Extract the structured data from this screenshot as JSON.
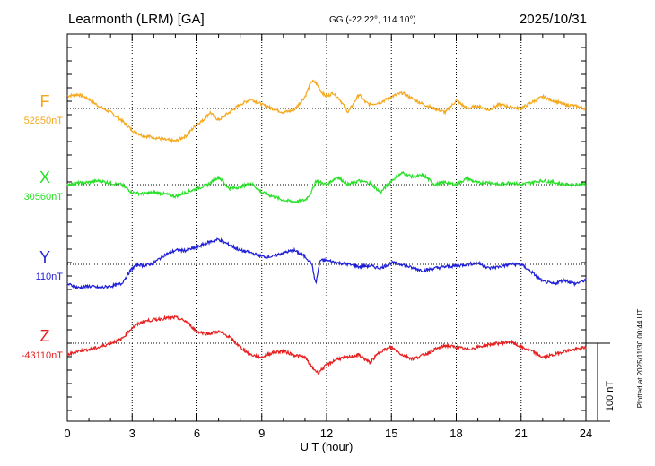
{
  "header": {
    "station": "Learmonth (LRM)  [GA]",
    "coords": "GG (-22.22°, 114.10°)",
    "date": "2025/10/31"
  },
  "chart_data": {
    "type": "line",
    "xlabel": "U T (hour)",
    "xlim": [
      0,
      24
    ],
    "x_ticks": [
      0,
      3,
      6,
      9,
      12,
      15,
      18,
      21,
      24
    ],
    "x_tick_labels": [
      "0",
      "3",
      "6",
      "9",
      "12",
      "15",
      "18",
      "21",
      "24"
    ],
    "grid": true,
    "scale_bar_label": "100 nT",
    "plotted_note": "Plotted at 2025/11/30 00:44 UT",
    "series": [
      {
        "name": "F",
        "baseline_label": "52850nT",
        "color": "#f5a81c",
        "x": [
          0,
          0.5,
          1,
          1.5,
          2,
          2.5,
          3,
          3.5,
          4,
          4.5,
          5,
          5.5,
          6,
          6.3,
          6.6,
          7,
          7.5,
          8,
          8.5,
          9,
          9.5,
          10,
          10.5,
          11,
          11.3,
          11.5,
          11.8,
          12,
          12.3,
          12.6,
          13,
          13.5,
          13.8,
          14,
          14.5,
          15,
          15.5,
          16,
          16.5,
          17,
          17.5,
          18,
          18.5,
          19,
          19.5,
          20,
          20.5,
          21,
          21.5,
          22,
          22.5,
          23,
          23.5,
          24
        ],
        "values": [
          16,
          18,
          12,
          2,
          -5,
          -15,
          -28,
          -35,
          -37,
          -40,
          -42,
          -35,
          -20,
          -15,
          -5,
          -15,
          -5,
          5,
          12,
          5,
          0,
          -5,
          -2,
          15,
          35,
          33,
          20,
          15,
          20,
          12,
          -5,
          18,
          8,
          5,
          8,
          15,
          20,
          12,
          5,
          0,
          -5,
          10,
          0,
          3,
          -2,
          5,
          2,
          0,
          8,
          15,
          10,
          5,
          3,
          0
        ]
      },
      {
        "name": "X",
        "baseline_label": "30560nT",
        "color": "#27e027",
        "x": [
          0,
          0.5,
          1,
          1.5,
          2,
          2.5,
          3,
          3.5,
          4,
          4.5,
          5,
          5.5,
          6,
          6.5,
          7,
          7.5,
          8,
          8.5,
          9,
          9.5,
          10,
          10.5,
          11,
          11.3,
          11.5,
          12,
          12.5,
          13,
          13.5,
          14,
          14.5,
          15,
          15.5,
          16,
          16.5,
          17,
          17.5,
          18,
          18.5,
          19,
          19.5,
          20,
          20.5,
          21,
          21.5,
          22,
          22.5,
          23,
          23.5,
          24
        ],
        "values": [
          0,
          2,
          3,
          5,
          2,
          0,
          -10,
          -12,
          -10,
          -12,
          -15,
          -10,
          -5,
          0,
          10,
          -5,
          -3,
          2,
          -10,
          -15,
          -20,
          -22,
          -20,
          -10,
          5,
          0,
          10,
          0,
          5,
          2,
          -10,
          5,
          15,
          10,
          12,
          0,
          3,
          0,
          8,
          2,
          3,
          0,
          3,
          0,
          3,
          5,
          3,
          0,
          0,
          2
        ]
      },
      {
        "name": "Y",
        "baseline_label": "110nT",
        "color": "#1f1fd8",
        "x": [
          0,
          0.5,
          1,
          1.5,
          2,
          2.5,
          3,
          3.3,
          3.6,
          4,
          4.5,
          5,
          5.5,
          6,
          6.5,
          7,
          7.5,
          8,
          8.5,
          9,
          9.5,
          10,
          10.5,
          11,
          11.3,
          11.5,
          11.7,
          12,
          12.5,
          13,
          13.5,
          14,
          14.5,
          15,
          15.5,
          16,
          16.5,
          17,
          17.5,
          18,
          18.5,
          19,
          19.5,
          20,
          20.5,
          21,
          21.5,
          22,
          22.5,
          23,
          23.5,
          24
        ],
        "values": [
          -25,
          -30,
          -28,
          -30,
          -28,
          -25,
          -5,
          0,
          -2,
          2,
          12,
          18,
          18,
          22,
          28,
          32,
          25,
          18,
          15,
          10,
          10,
          15,
          18,
          10,
          2,
          -25,
          5,
          5,
          2,
          0,
          -3,
          -2,
          -5,
          2,
          0,
          -5,
          -8,
          -5,
          -3,
          -2,
          0,
          2,
          -5,
          -3,
          0,
          0,
          -10,
          -22,
          -25,
          -20,
          -25,
          -20
        ]
      },
      {
        "name": "Z",
        "baseline_label": "-43110nT",
        "color": "#e81e1e",
        "x": [
          0,
          0.5,
          1,
          1.5,
          2,
          2.5,
          3,
          3.5,
          4,
          4.5,
          5,
          5.5,
          6,
          6.5,
          7,
          7.5,
          8,
          8.5,
          9,
          9.5,
          10,
          10.5,
          11,
          11.3,
          11.6,
          12,
          12.5,
          13,
          13.5,
          14,
          14.5,
          15,
          15.5,
          16,
          16.5,
          17,
          17.5,
          18,
          18.5,
          19,
          19.5,
          20,
          20.5,
          21,
          21.5,
          22,
          22.5,
          23,
          23.5,
          24
        ],
        "values": [
          -15,
          -10,
          -8,
          -5,
          0,
          5,
          20,
          28,
          30,
          32,
          33,
          28,
          15,
          12,
          15,
          8,
          -5,
          -15,
          -18,
          -12,
          -10,
          -15,
          -18,
          -30,
          -38,
          -28,
          -20,
          -18,
          -15,
          -25,
          -10,
          -5,
          -15,
          -20,
          -15,
          -8,
          -3,
          -5,
          -8,
          -5,
          -2,
          0,
          2,
          -5,
          -10,
          -18,
          -15,
          -10,
          -8,
          -5
        ]
      }
    ]
  }
}
